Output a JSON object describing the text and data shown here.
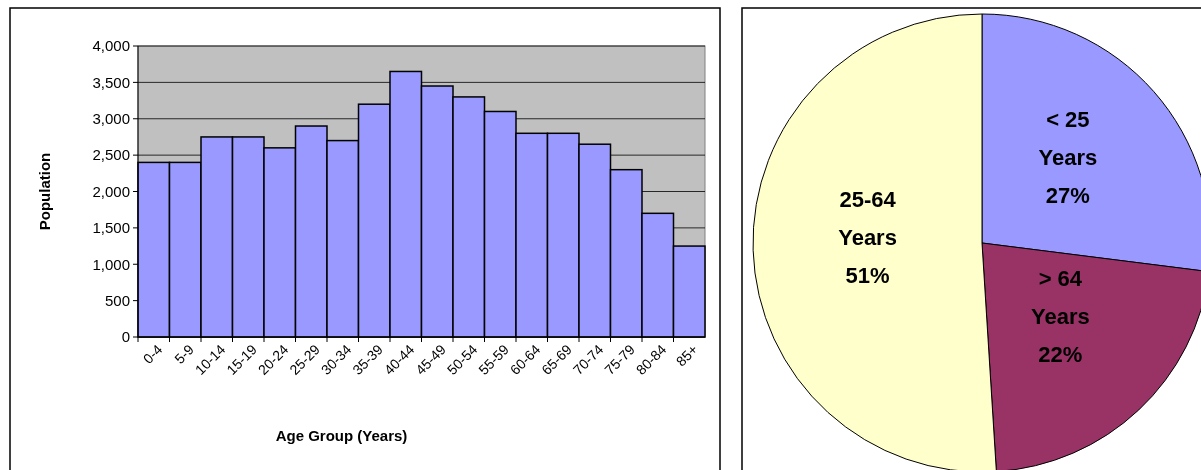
{
  "chart_data": [
    {
      "type": "bar",
      "xlabel": "Age Group (Years)",
      "ylabel": "Population",
      "categories": [
        "0-4",
        "5-9",
        "10-14",
        "15-19",
        "20-24",
        "25-29",
        "30-34",
        "35-39",
        "40-44",
        "45-49",
        "50-54",
        "55-59",
        "60-64",
        "65-69",
        "70-74",
        "75-79",
        "80-84",
        "85+"
      ],
      "values": [
        2400,
        2400,
        2750,
        2750,
        2600,
        2900,
        2700,
        3200,
        3650,
        3450,
        3300,
        3100,
        2800,
        2800,
        2650,
        2300,
        1700,
        1250
      ],
      "color": "#9999ff",
      "ylim": [
        0,
        4000
      ],
      "yticks": [
        {
          "value": 0,
          "label": "0"
        },
        {
          "value": 500,
          "label": "500"
        },
        {
          "value": 1000,
          "label": "1,000"
        },
        {
          "value": 1500,
          "label": "1,500"
        },
        {
          "value": 2000,
          "label": "2,000"
        },
        {
          "value": 2500,
          "label": "2,500"
        },
        {
          "value": 3000,
          "label": "3,000"
        },
        {
          "value": 3500,
          "label": "3,500"
        },
        {
          "value": 4000,
          "label": "4,000"
        }
      ],
      "grid": "y"
    },
    {
      "type": "pie",
      "categories": [
        "< 25 Years",
        "> 64 Years",
        "25-64 Years"
      ],
      "values": [
        27,
        22,
        51
      ],
      "colors": [
        "#9999ff",
        "#993366",
        "#ffffcc"
      ],
      "value_labels": [
        "27%",
        "22%",
        "51%"
      ]
    }
  ]
}
